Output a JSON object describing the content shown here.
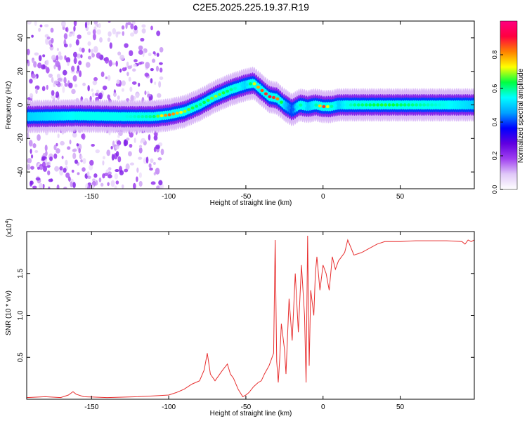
{
  "title": "C2E5.2025.225.19.37.R19",
  "chart_data": [
    {
      "type": "heatmap",
      "xlabel": "Height of straight line (km)",
      "ylabel": "Frequency (Hz)",
      "xlim": [
        -192,
        98
      ],
      "ylim": [
        -50,
        50
      ],
      "xticks": [
        -150,
        -100,
        -50,
        0,
        50
      ],
      "yticks": [
        -40,
        -20,
        0,
        20,
        40
      ],
      "colorbar": {
        "label": "Normalized spectral amplitude",
        "range": [
          0,
          1
        ],
        "ticks": [
          0.0,
          0.2,
          0.4,
          0.6,
          0.8
        ],
        "tick_labels": [
          "0.0",
          "0.2",
          "0.4",
          "0.6",
          "0.8"
        ],
        "colors": [
          "#ffffff",
          "#e0c8f8",
          "#a040f0",
          "#6000e0",
          "#0000ff",
          "#00a0ff",
          "#00ffff",
          "#00ff40",
          "#ffff00",
          "#ff8000",
          "#ff0040",
          "#ff0080"
        ]
      },
      "ridge": {
        "height_km": [
          -192,
          -160,
          -130,
          -110,
          -100,
          -90,
          -80,
          -70,
          -60,
          -50,
          -45,
          -40,
          -35,
          -30,
          -25,
          -20,
          -15,
          -10,
          -5,
          0,
          5,
          10,
          20,
          40,
          60,
          80,
          98
        ],
        "frequency_hz": [
          -7,
          -6.5,
          -7,
          -7,
          -6,
          -4,
          0,
          5,
          9,
          12,
          13,
          9,
          5,
          4,
          0,
          -3,
          0,
          -1,
          0,
          -1,
          -1,
          0,
          0,
          0,
          0,
          0,
          0
        ],
        "peak_amplitude": [
          0.5,
          0.55,
          0.55,
          0.6,
          0.85,
          0.7,
          0.6,
          0.7,
          0.6,
          0.5,
          0.7,
          0.85,
          0.9,
          0.85,
          0.5,
          0.4,
          0.6,
          0.5,
          0.55,
          0.9,
          0.6,
          0.5,
          0.6,
          0.65,
          0.6,
          0.55,
          0.5
        ]
      }
    },
    {
      "type": "line",
      "xlabel": "Height of straight line (km)",
      "ylabel": "SNR (10 * v/v)",
      "y_multiplier_label": "(x10",
      "y_multiplier_exp": "4",
      "y_multiplier_close": ")",
      "xlim": [
        -192,
        98
      ],
      "ylim": [
        0,
        2.0
      ],
      "xticks": [
        -150,
        -100,
        -50,
        0,
        50
      ],
      "yticks": [
        0.5,
        1.0,
        1.5
      ],
      "ytick_labels": [
        "0.5",
        "1.0",
        "1.5"
      ],
      "color": "#e83030",
      "series": [
        {
          "x": [
            -192,
            -180,
            -170,
            -165,
            -162,
            -160,
            -155,
            -140,
            -120,
            -110,
            -100,
            -95,
            -90,
            -85,
            -80,
            -77,
            -75,
            -73,
            -70,
            -65,
            -62,
            -60,
            -58,
            -55,
            -52,
            -50,
            -48,
            -45,
            -42,
            -40,
            -38,
            -35,
            -32,
            -31,
            -30,
            -29,
            -28,
            -27,
            -25,
            -24,
            -22,
            -20,
            -18,
            -16,
            -14,
            -12,
            -11,
            -10,
            -9,
            -8,
            -6,
            -5,
            -4,
            -2,
            0,
            2,
            4,
            6,
            8,
            10,
            12,
            14,
            16,
            20,
            25,
            30,
            35,
            40,
            50,
            60,
            70,
            80,
            90,
            92,
            94,
            96,
            98
          ],
          "y": [
            0.02,
            0.03,
            0.02,
            0.05,
            0.09,
            0.06,
            0.03,
            0.02,
            0.03,
            0.04,
            0.05,
            0.08,
            0.12,
            0.18,
            0.22,
            0.35,
            0.55,
            0.3,
            0.22,
            0.35,
            0.42,
            0.3,
            0.25,
            0.12,
            0.03,
            0.05,
            0.08,
            0.15,
            0.2,
            0.22,
            0.3,
            0.4,
            0.55,
            1.9,
            0.45,
            0.2,
            0.5,
            0.9,
            0.6,
            0.3,
            1.2,
            0.7,
            1.5,
            0.8,
            1.6,
            1.0,
            0.2,
            1.95,
            0.4,
            1.3,
            1.0,
            1.5,
            1.7,
            1.3,
            1.6,
            1.5,
            1.3,
            1.7,
            1.55,
            1.65,
            1.7,
            1.75,
            1.9,
            1.72,
            1.75,
            1.8,
            1.85,
            1.88,
            1.88,
            1.89,
            1.89,
            1.89,
            1.88,
            1.85,
            1.9,
            1.88,
            1.9
          ]
        }
      ]
    }
  ]
}
